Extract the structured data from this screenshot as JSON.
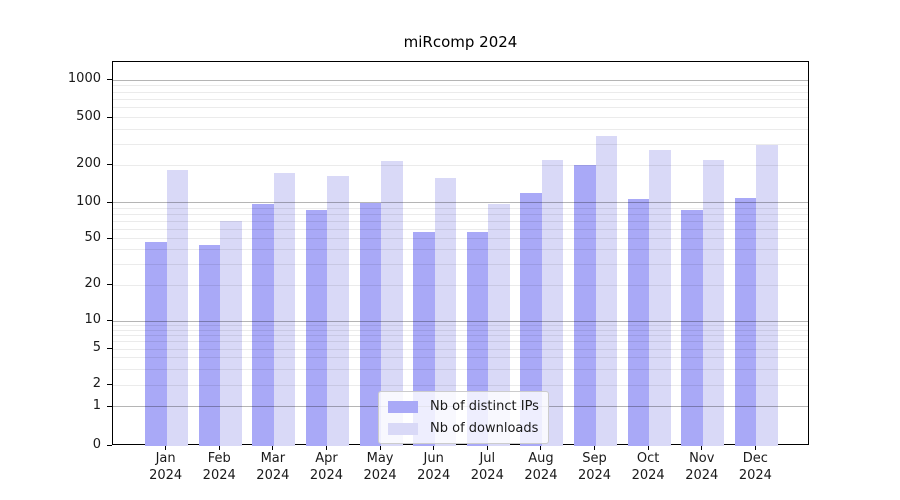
{
  "chart_data": {
    "type": "bar",
    "title": "miRcomp 2024",
    "categories": [
      "Jan",
      "Feb",
      "Mar",
      "Apr",
      "May",
      "Jun",
      "Jul",
      "Aug",
      "Sep",
      "Oct",
      "Nov",
      "Dec"
    ],
    "category_year": "2024",
    "series": [
      {
        "name": "Nb of distinct IPs",
        "color": "#a9a9f7",
        "values": [
          47,
          44,
          98,
          87,
          100,
          57,
          57,
          120,
          200,
          107,
          87,
          110
        ]
      },
      {
        "name": "Nb of downloads",
        "color": "#d9d9f7",
        "values": [
          183,
          70,
          174,
          163,
          215,
          157,
          98,
          220,
          350,
          270,
          220,
          297
        ]
      }
    ],
    "yscale": "symlog",
    "yticks": [
      0,
      1,
      2,
      5,
      10,
      20,
      50,
      100,
      200,
      500,
      1000
    ],
    "ylim": [
      0,
      1400
    ],
    "grid": "both",
    "legend_position": "lower center"
  },
  "colors": {
    "bar_distinct_ips": "#a9a9f7",
    "bar_downloads": "#d9d9f7",
    "grid_major": "rgba(0,0,0,0.29)",
    "grid_minor": "rgba(0,0,0,0.08)",
    "spine": "#000000",
    "text": "#1a1a1a",
    "legend_border": "#cccccc"
  }
}
